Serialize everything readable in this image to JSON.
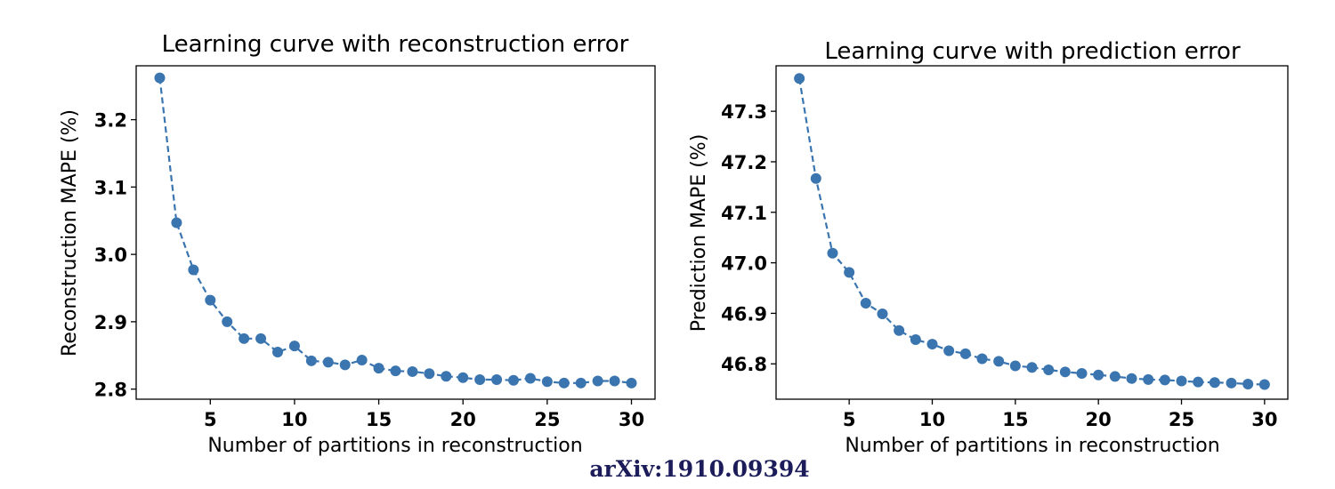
{
  "colors": {
    "series": "#3b75af",
    "axis": "#000000",
    "watermark": "#1c1c5a"
  },
  "watermark": "arXiv:1910.09394",
  "chart_data": [
    {
      "type": "line",
      "title": "Learning curve with reconstruction error",
      "xlabel": "Number of partitions in reconstruction",
      "ylabel": "Reconstruction MAPE (%)",
      "xlim": [
        0.6,
        31.4
      ],
      "ylim": [
        2.785,
        3.28
      ],
      "xticks": [
        5,
        10,
        15,
        20,
        25,
        30
      ],
      "xtick_labels": [
        "5",
        "10",
        "15",
        "20",
        "25",
        "30"
      ],
      "yticks": [
        2.8,
        2.9,
        3.0,
        3.1,
        3.2
      ],
      "ytick_labels": [
        "2.8",
        "2.9",
        "3.0",
        "3.1",
        "3.2"
      ],
      "grid": false,
      "line_style": "dashed with circle markers",
      "series": [
        {
          "x": [
            2,
            3,
            4,
            5,
            6,
            7,
            8,
            9,
            10,
            11,
            12,
            13,
            14,
            15,
            16,
            17,
            18,
            19,
            20,
            21,
            22,
            23,
            24,
            25,
            26,
            27,
            28,
            29,
            30
          ],
          "y": [
            3.262,
            3.047,
            2.977,
            2.932,
            2.9,
            2.875,
            2.875,
            2.855,
            2.864,
            2.842,
            2.84,
            2.836,
            2.843,
            2.831,
            2.827,
            2.826,
            2.823,
            2.819,
            2.817,
            2.814,
            2.814,
            2.813,
            2.816,
            2.811,
            2.809,
            2.809,
            2.812,
            2.812,
            2.809
          ]
        }
      ]
    },
    {
      "type": "line",
      "title": "Learning curve with prediction error",
      "xlabel": "Number of partitions in reconstruction",
      "ylabel": "Prediction MAPE (%)",
      "xlim": [
        0.6,
        31.4
      ],
      "ylim": [
        46.73,
        47.39
      ],
      "xticks": [
        5,
        10,
        15,
        20,
        25,
        30
      ],
      "xtick_labels": [
        "5",
        "10",
        "15",
        "20",
        "25",
        "30"
      ],
      "yticks": [
        46.8,
        46.9,
        47.0,
        47.1,
        47.2,
        47.3
      ],
      "ytick_labels": [
        "46.8",
        "46.9",
        "47.0",
        "47.1",
        "47.2",
        "47.3"
      ],
      "grid": false,
      "line_style": "dashed with circle markers",
      "series": [
        {
          "x": [
            2,
            3,
            4,
            5,
            6,
            7,
            8,
            9,
            10,
            11,
            12,
            13,
            14,
            15,
            16,
            17,
            18,
            19,
            20,
            21,
            22,
            23,
            24,
            25,
            26,
            27,
            28,
            29,
            30
          ],
          "y": [
            47.365,
            47.167,
            47.019,
            46.981,
            46.92,
            46.899,
            46.866,
            46.848,
            46.839,
            46.826,
            46.82,
            46.81,
            46.805,
            46.796,
            46.793,
            46.788,
            46.784,
            46.781,
            46.778,
            46.775,
            46.771,
            46.769,
            46.768,
            46.766,
            46.764,
            46.763,
            46.762,
            46.76,
            46.759
          ]
        }
      ]
    }
  ]
}
